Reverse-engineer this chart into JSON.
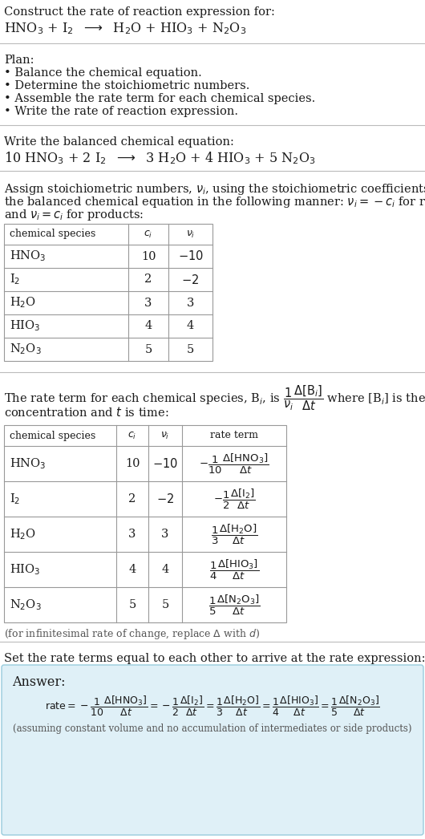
{
  "bg_color": "#ffffff",
  "text_color": "#1a1a1a",
  "gray_text": "#555555",
  "light_blue_bg": "#dff0f7",
  "table_border": "#999999",
  "divider_color": "#bbbbbb",
  "title_line1": "Construct the rate of reaction expression for:",
  "title_line2": "HNO$_3$ + I$_2$  $\\longrightarrow$  H$_2$O + HIO$_3$ + N$_2$O$_3$",
  "plan_header": "Plan:",
  "plan_items": [
    "\\textbullet  Balance the chemical equation.",
    "\\textbullet  Determine the stoichiometric numbers.",
    "\\textbullet  Assemble the rate term for each chemical species.",
    "\\textbullet  Write the rate of reaction expression."
  ],
  "balanced_header": "Write the balanced chemical equation:",
  "balanced_eq": "10 HNO$_3$ + 2 I$_2$  $\\longrightarrow$  3 H$_2$O + 4 HIO$_3$ + 5 N$_2$O$_3$",
  "stoich_intro_lines": [
    "Assign stoichiometric numbers, $\\nu_i$, using the stoichiometric coefficients, $c_i$, from",
    "the balanced chemical equation in the following manner: $\\nu_i = -c_i$ for reactants",
    "and $\\nu_i = c_i$ for products:"
  ],
  "table1_col_headers": [
    "chemical species",
    "$c_i$",
    "$\\nu_i$"
  ],
  "table1_rows": [
    [
      "HNO$_3$",
      "10",
      "$-10$"
    ],
    [
      "I$_2$",
      "2",
      "$-2$"
    ],
    [
      "H$_2$O",
      "3",
      "3"
    ],
    [
      "HIO$_3$",
      "4",
      "4"
    ],
    [
      "N$_2$O$_3$",
      "5",
      "5"
    ]
  ],
  "rate_intro_lines": [
    "The rate term for each chemical species, B$_i$, is $\\dfrac{1}{\\nu_i}\\dfrac{\\Delta[\\mathrm{B}_i]}{\\Delta t}$ where [B$_i$] is the amount",
    "concentration and $t$ is time:"
  ],
  "table2_col_headers": [
    "chemical species",
    "$c_i$",
    "$\\nu_i$",
    "rate term"
  ],
  "table2_rows": [
    [
      "HNO$_3$",
      "10",
      "$-10$",
      "$-\\dfrac{1}{10}\\dfrac{\\Delta[\\mathrm{HNO_3}]}{\\Delta t}$"
    ],
    [
      "I$_2$",
      "2",
      "$-2$",
      "$-\\dfrac{1}{2}\\dfrac{\\Delta[\\mathrm{I_2}]}{\\Delta t}$"
    ],
    [
      "H$_2$O",
      "3",
      "3",
      "$\\dfrac{1}{3}\\dfrac{\\Delta[\\mathrm{H_2O}]}{\\Delta t}$"
    ],
    [
      "HIO$_3$",
      "4",
      "4",
      "$\\dfrac{1}{4}\\dfrac{\\Delta[\\mathrm{HIO_3}]}{\\Delta t}$"
    ],
    [
      "N$_2$O$_3$",
      "5",
      "5",
      "$\\dfrac{1}{5}\\dfrac{\\Delta[\\mathrm{N_2O_3}]}{\\Delta t}$"
    ]
  ],
  "infinitesimal_note": "(for infinitesimal rate of change, replace $\\Delta$ with $d$)",
  "set_rate_text": "Set the rate terms equal to each other to arrive at the rate expression:",
  "answer_label": "Answer:",
  "rate_expression": "$\\mathrm{rate} = -\\dfrac{1}{10}\\dfrac{\\Delta[\\mathrm{HNO_3}]}{\\Delta t} = -\\dfrac{1}{2}\\dfrac{\\Delta[\\mathrm{I_2}]}{\\Delta t} = \\dfrac{1}{3}\\dfrac{\\Delta[\\mathrm{H_2O}]}{\\Delta t} = \\dfrac{1}{4}\\dfrac{\\Delta[\\mathrm{HIO_3}]}{\\Delta t} = \\dfrac{1}{5}\\dfrac{\\Delta[\\mathrm{N_2O_3}]}{\\Delta t}$",
  "assumption_note": "(assuming constant volume and no accumulation of intermediates or side products)"
}
